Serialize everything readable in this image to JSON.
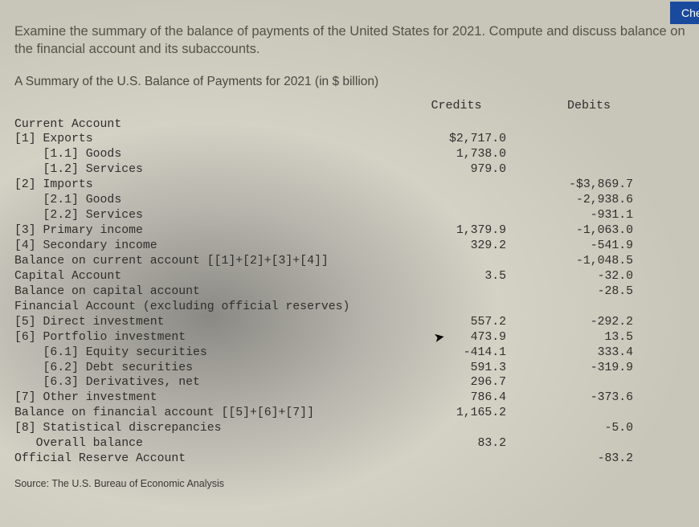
{
  "topButton": {
    "label": "Che"
  },
  "question": "Examine the summary of the balance of payments of the United States for 2021. Compute and discuss balance on the financial account and its subaccounts.",
  "caption": "A Summary of the U.S. Balance of Payments for 2021 (in $ billion)",
  "columns": {
    "credits": "Credits",
    "debits": "Debits"
  },
  "rows": [
    {
      "label": "Current Account",
      "credit": "",
      "debit": ""
    },
    {
      "label": "[1] Exports",
      "credit": "$2,717.0",
      "debit": ""
    },
    {
      "label": "    [1.1] Goods",
      "credit": "1,738.0",
      "debit": ""
    },
    {
      "label": "    [1.2] Services",
      "credit": "979.0",
      "debit": ""
    },
    {
      "label": "[2] Imports",
      "credit": "",
      "debit": "-$3,869.7"
    },
    {
      "label": "    [2.1] Goods",
      "credit": "",
      "debit": "-2,938.6"
    },
    {
      "label": "    [2.2] Services",
      "credit": "",
      "debit": "-931.1"
    },
    {
      "label": "[3] Primary income",
      "credit": "1,379.9",
      "debit": "-1,063.0"
    },
    {
      "label": "[4] Secondary income",
      "credit": "329.2",
      "debit": "-541.9"
    },
    {
      "label": "Balance on current account [[1]+[2]+[3]+[4]]",
      "credit": "",
      "debit": "-1,048.5"
    },
    {
      "label": "Capital Account",
      "credit": "3.5",
      "debit": "-32.0"
    },
    {
      "label": "Balance on capital account",
      "credit": "",
      "debit": "-28.5"
    },
    {
      "label": "Financial Account (excluding official reserves)",
      "credit": "",
      "debit": ""
    },
    {
      "label": "[5] Direct investment",
      "credit": "557.2",
      "debit": "-292.2"
    },
    {
      "label": "[6] Portfolio investment",
      "credit": "473.9",
      "debit": "13.5"
    },
    {
      "label": "    [6.1] Equity securities",
      "credit": "-414.1",
      "debit": "333.4"
    },
    {
      "label": "    [6.2] Debt securities",
      "credit": "591.3",
      "debit": "-319.9"
    },
    {
      "label": "    [6.3] Derivatives, net",
      "credit": "296.7",
      "debit": ""
    },
    {
      "label": "[7] Other investment",
      "credit": "786.4",
      "debit": "-373.6"
    },
    {
      "label": "Balance on financial account [[5]+[6]+[7]]",
      "credit": "1,165.2",
      "debit": ""
    },
    {
      "label": "[8] Statistical discrepancies",
      "credit": "",
      "debit": "-5.0"
    },
    {
      "label": "   Overall balance",
      "credit": "83.2",
      "debit": ""
    },
    {
      "label": "Official Reserve Account",
      "credit": "",
      "debit": "-83.2"
    }
  ],
  "source": "Source: The U.S. Bureau of Economic Analysis"
}
